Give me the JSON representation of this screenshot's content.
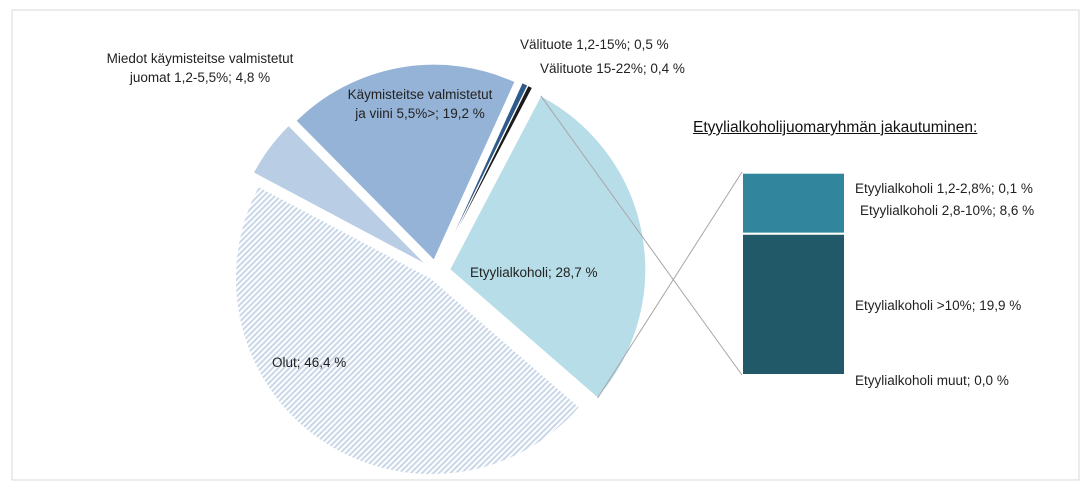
{
  "chart_data": {
    "type": "pie",
    "values": [
      46.4,
      4.8,
      19.2,
      0.5,
      0.4,
      28.7
    ],
    "value_labels": [
      "Olut; 46,4 %",
      "Miedot käymisteitse valmistetut juomat 1,2-5,5%; 4,8 %",
      "Käymisteitse valmistetut ja viini 5,5%>; 19,2 %",
      "Välituote 1,2-15%; 0,5 %",
      "Välituote 15-22%; 0,4 %",
      "Etyylialkoholi; 28,7 %"
    ],
    "colors": [
      "#c9d7e8",
      "#b9cde5",
      "#95b3d7",
      "#2f5b8c",
      "#1b1b1b",
      "#b7dde8"
    ],
    "hatch": [
      true,
      false,
      false,
      false,
      false,
      false
    ],
    "bar": {
      "title": "Etyylialkoholijuomaryhmän jakautuminen:",
      "values": [
        0.1,
        8.6,
        19.9,
        0.0
      ],
      "value_labels": [
        "Etyylialkoholi 1,2-2,8%; 0,1 %",
        "Etyylialkoholi 2,8-10%; 8,6 %",
        "Etyylialkoholi >10%; 19,9 %",
        "Etyylialkoholi muut; 0,0 %"
      ],
      "colors": [
        "#31859c",
        "#31859c",
        "#215968",
        "#215968"
      ]
    }
  }
}
